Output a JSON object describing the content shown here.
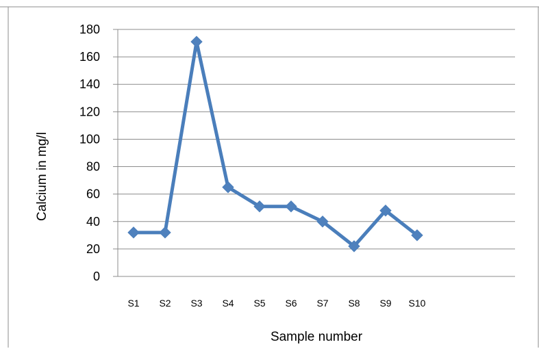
{
  "chart_data": {
    "type": "line",
    "categories": [
      "S1",
      "S2",
      "S3",
      "S4",
      "S5",
      "S6",
      "S7",
      "S8",
      "S9",
      "S10"
    ],
    "series": [
      {
        "values": [
          32,
          32,
          171,
          65,
          51,
          51,
          40,
          22,
          48,
          30
        ]
      }
    ],
    "xlabel": "Sample number",
    "ylabel": "Calcium in mg/l",
    "ylim": [
      0,
      180
    ],
    "yticks": [
      "0",
      "20",
      "40",
      "60",
      "80",
      "100",
      "120",
      "140",
      "160",
      "180"
    ],
    "grid": true,
    "marker": "diamond",
    "line_color": "#4a7ebb",
    "marker_color": "#4f81bd"
  }
}
